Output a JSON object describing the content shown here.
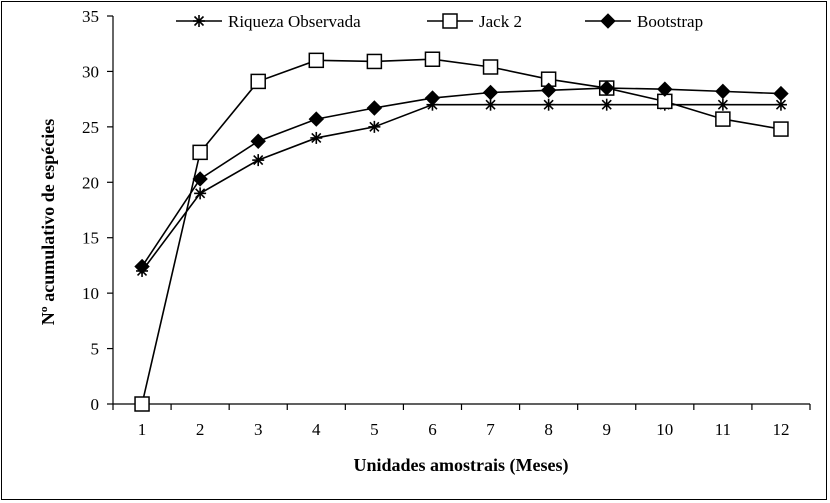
{
  "chart_data": {
    "type": "line",
    "title": "",
    "xlabel": "Unidades amostrais (Meses)",
    "ylabel": "Nº acumulativo de espécies",
    "x": [
      1,
      2,
      3,
      4,
      5,
      6,
      7,
      8,
      9,
      10,
      11,
      12
    ],
    "xlim": [
      0.5,
      12.5
    ],
    "ylim": [
      0,
      35
    ],
    "yticks": [
      0,
      5,
      10,
      15,
      20,
      25,
      30,
      35
    ],
    "grid": false,
    "legend_position": "top",
    "series": [
      {
        "name": "Riqueza Observada",
        "marker": "asterisk",
        "color": "#000000",
        "values": [
          12,
          19,
          22,
          24,
          25,
          27,
          27,
          27,
          27,
          27,
          27,
          27
        ]
      },
      {
        "name": "Jack 2",
        "marker": "open-square",
        "color": "#000000",
        "values": [
          0,
          22.7,
          29.1,
          31.0,
          30.9,
          31.1,
          30.4,
          29.3,
          28.5,
          27.3,
          25.7,
          24.8
        ]
      },
      {
        "name": "Bootstrap",
        "marker": "filled-diamond",
        "color": "#000000",
        "values": [
          12.4,
          20.3,
          23.7,
          25.7,
          26.7,
          27.6,
          28.1,
          28.3,
          28.5,
          28.4,
          28.2,
          28.0
        ]
      }
    ]
  }
}
